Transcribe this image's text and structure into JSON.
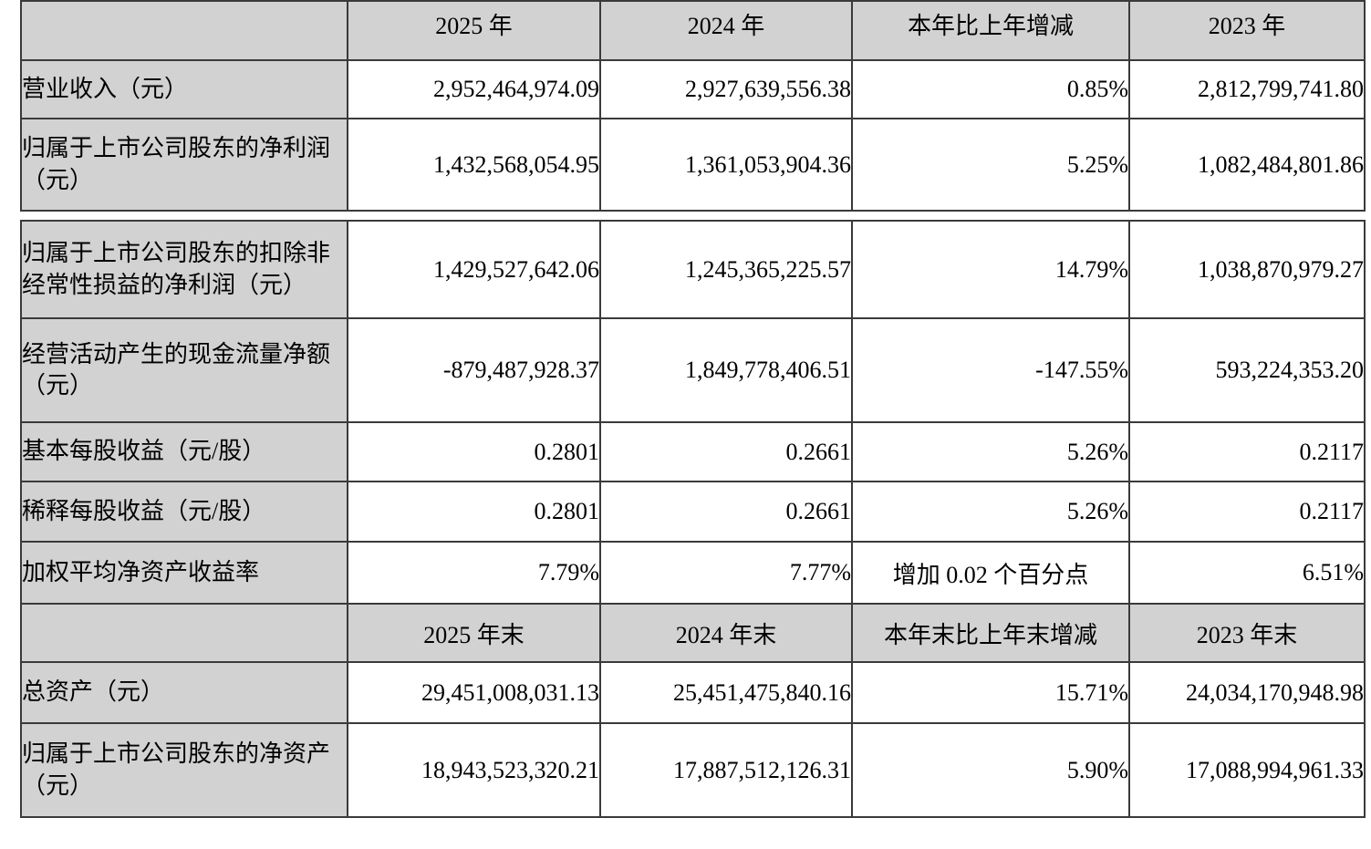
{
  "colors": {
    "header_bg": "#d2d2d2",
    "label_bg": "#d2d2d2",
    "cell_bg": "#ffffff",
    "border": "#3a3a3a",
    "text": "#000000"
  },
  "table": {
    "period_header": {
      "corner": "",
      "col_current": "2025 年",
      "col_prev": "2024 年",
      "col_change": "本年比上年增减",
      "col_prev2": "2023 年"
    },
    "period_rows": [
      {
        "label": "营业收入（元）",
        "current": "2,952,464,974.09",
        "prev": "2,927,639,556.38",
        "change": "0.85%",
        "prev2": "2,812,799,741.80"
      },
      {
        "label": "归属于上市公司股东的净利润（元）",
        "current": "1,432,568,054.95",
        "prev": "1,361,053,904.36",
        "change": "5.25%",
        "prev2": "1,082,484,801.86"
      },
      {
        "label": "归属于上市公司股东的扣除非经常性损益的净利润（元）",
        "current": "1,429,527,642.06",
        "prev": "1,245,365,225.57",
        "change": "14.79%",
        "prev2": "1,038,870,979.27"
      },
      {
        "label": "经营活动产生的现金流量净额（元）",
        "current": "-879,487,928.37",
        "prev": "1,849,778,406.51",
        "change": "-147.55%",
        "prev2": "593,224,353.20"
      },
      {
        "label": "基本每股收益（元/股）",
        "current": "0.2801",
        "prev": "0.2661",
        "change": "5.26%",
        "prev2": "0.2117"
      },
      {
        "label": "稀释每股收益（元/股）",
        "current": "0.2801",
        "prev": "0.2661",
        "change": "5.26%",
        "prev2": "0.2117"
      },
      {
        "label": "加权平均净资产收益率",
        "current": "7.79%",
        "prev": "7.77%",
        "change": "增加 0.02 个百分点",
        "prev2": "6.51%"
      }
    ],
    "eop_header": {
      "corner": "",
      "col_current": "2025 年末",
      "col_prev": "2024 年末",
      "col_change": "本年末比上年末增减",
      "col_prev2": "2023 年末"
    },
    "eop_rows": [
      {
        "label": "总资产（元）",
        "current": "29,451,008,031.13",
        "prev": "25,451,475,840.16",
        "change": "15.71%",
        "prev2": "24,034,170,948.98"
      },
      {
        "label": "归属于上市公司股东的净资产（元）",
        "current": "18,943,523,320.21",
        "prev": "17,887,512,126.31",
        "change": "5.90%",
        "prev2": "17,088,994,961.33"
      }
    ]
  }
}
